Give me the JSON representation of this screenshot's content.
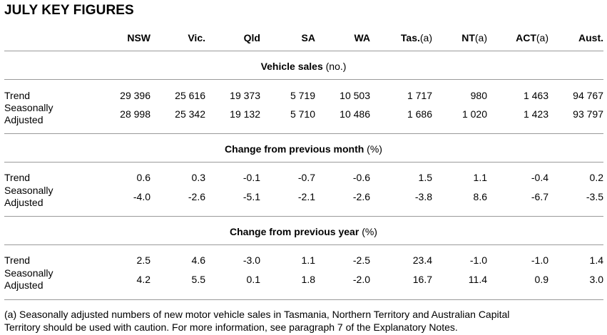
{
  "title": "JULY KEY FIGURES",
  "columns": [
    {
      "label": "NSW",
      "note": ""
    },
    {
      "label": "Vic.",
      "note": ""
    },
    {
      "label": "Qld",
      "note": ""
    },
    {
      "label": "SA",
      "note": ""
    },
    {
      "label": "WA",
      "note": ""
    },
    {
      "label": "Tas.",
      "note": "(a)"
    },
    {
      "label": "NT",
      "note": "(a)"
    },
    {
      "label": "ACT",
      "note": "(a)"
    },
    {
      "label": "Aust.",
      "note": ""
    }
  ],
  "row_labels": {
    "trend": "Trend",
    "seasonally_1": "Seasonally",
    "seasonally_2": "Adjusted"
  },
  "sections": [
    {
      "title": "Vehicle sales",
      "unit": "(no.)",
      "trend": [
        "29 396",
        "25 616",
        "19 373",
        "5 719",
        "10 503",
        "1 717",
        "980",
        "1 463",
        "94 767"
      ],
      "seasonally_adjusted": [
        "28 998",
        "25 342",
        "19 132",
        "5 710",
        "10 486",
        "1 686",
        "1 020",
        "1 423",
        "93 797"
      ]
    },
    {
      "title": "Change from previous month",
      "unit": "(%)",
      "trend": [
        "0.6",
        "0.3",
        "-0.1",
        "-0.7",
        "-0.6",
        "1.5",
        "1.1",
        "-0.4",
        "0.2"
      ],
      "seasonally_adjusted": [
        "-4.0",
        "-2.6",
        "-5.1",
        "-2.1",
        "-2.6",
        "-3.8",
        "8.6",
        "-6.7",
        "-3.5"
      ]
    },
    {
      "title": "Change from previous year",
      "unit": "(%)",
      "trend": [
        "2.5",
        "4.6",
        "-3.0",
        "1.1",
        "-2.5",
        "23.4",
        "-1.0",
        "-1.0",
        "1.4"
      ],
      "seasonally_adjusted": [
        "4.2",
        "5.5",
        "0.1",
        "1.8",
        "-2.0",
        "16.7",
        "11.4",
        "0.9",
        "3.0"
      ]
    }
  ],
  "footnote_line1": "(a) Seasonally adjusted numbers of new motor vehicle sales in Tasmania, Northern Territory and Australian Capital",
  "footnote_line2": "Territory should be used with caution. For more information, see paragraph 7 of the Explanatory Notes."
}
